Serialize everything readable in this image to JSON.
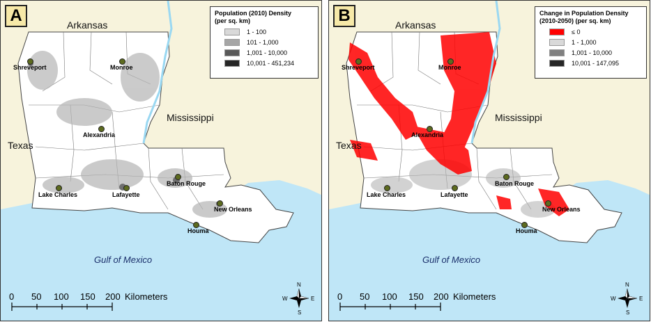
{
  "panels": [
    {
      "letter": "A",
      "legend": {
        "title_line1": "Population (2010) Density",
        "title_line2": "(per sq. km)",
        "items": [
          {
            "label": "1 - 100",
            "color": "#d9d9d9"
          },
          {
            "label": "101 - 1,000",
            "color": "#a6a6a6"
          },
          {
            "label": "1,001 - 10,000",
            "color": "#595959"
          },
          {
            "label": "10,001 - 451,234",
            "color": "#262626"
          }
        ]
      }
    },
    {
      "letter": "B",
      "legend": {
        "title_line1": "Change in Population Density",
        "title_line2": "(2010-2050) (per sq. km)",
        "items": [
          {
            "label": "≤ 0",
            "color": "#ff0000"
          },
          {
            "label": "1 - 1,000",
            "color": "#d9d9d9"
          },
          {
            "label": "1,001 - 10,000",
            "color": "#808080"
          },
          {
            "label": "10,001 - 147,095",
            "color": "#262626"
          }
        ]
      }
    }
  ],
  "labels": {
    "arkansas": "Arkansas",
    "mississippi": "Mississippi",
    "texas": "Texas",
    "gulf": "Gulf of Mexico"
  },
  "cities": [
    "Shreveport",
    "Monroe",
    "Alexandria",
    "Lake Charles",
    "Lafayette",
    "Baton Rouge",
    "New Orleans",
    "Houma"
  ],
  "scale": {
    "ticks": [
      "0",
      "50",
      "100",
      "150",
      "200"
    ],
    "unit": "Kilometers"
  },
  "compass": {
    "n": "N",
    "s": "S",
    "e": "E",
    "w": "W"
  },
  "colors": {
    "land": "#f7f3dc",
    "water": "#bfe6f7",
    "state": "#ffffff",
    "decline": "#ff0000"
  }
}
